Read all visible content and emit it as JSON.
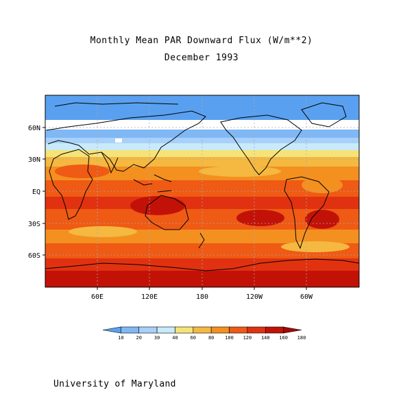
{
  "title": "Monthly Mean PAR Downward Flux (W/m**2)",
  "subtitle": "December 1993",
  "footer": "University of Maryland",
  "map": {
    "lat_labels": [
      "60N",
      "30N",
      "EQ",
      "30S",
      "60S"
    ],
    "lon_labels": [
      "60E",
      "120E",
      "180",
      "120W",
      "60W"
    ]
  },
  "colorbar": {
    "labels": [
      "10",
      "20",
      "30",
      "40",
      "60",
      "80",
      "100",
      "120",
      "140",
      "160",
      "180"
    ],
    "colors": [
      "#5aa0f0",
      "#80b8f5",
      "#a8d0f8",
      "#c8eafa",
      "#f5e37a",
      "#f5b840",
      "#f39020",
      "#ef5a14",
      "#e03210",
      "#c21208",
      "#a00a06"
    ]
  },
  "colors": {
    "ocean_land_outline": "#000000",
    "grid": "#aaaaaa"
  }
}
